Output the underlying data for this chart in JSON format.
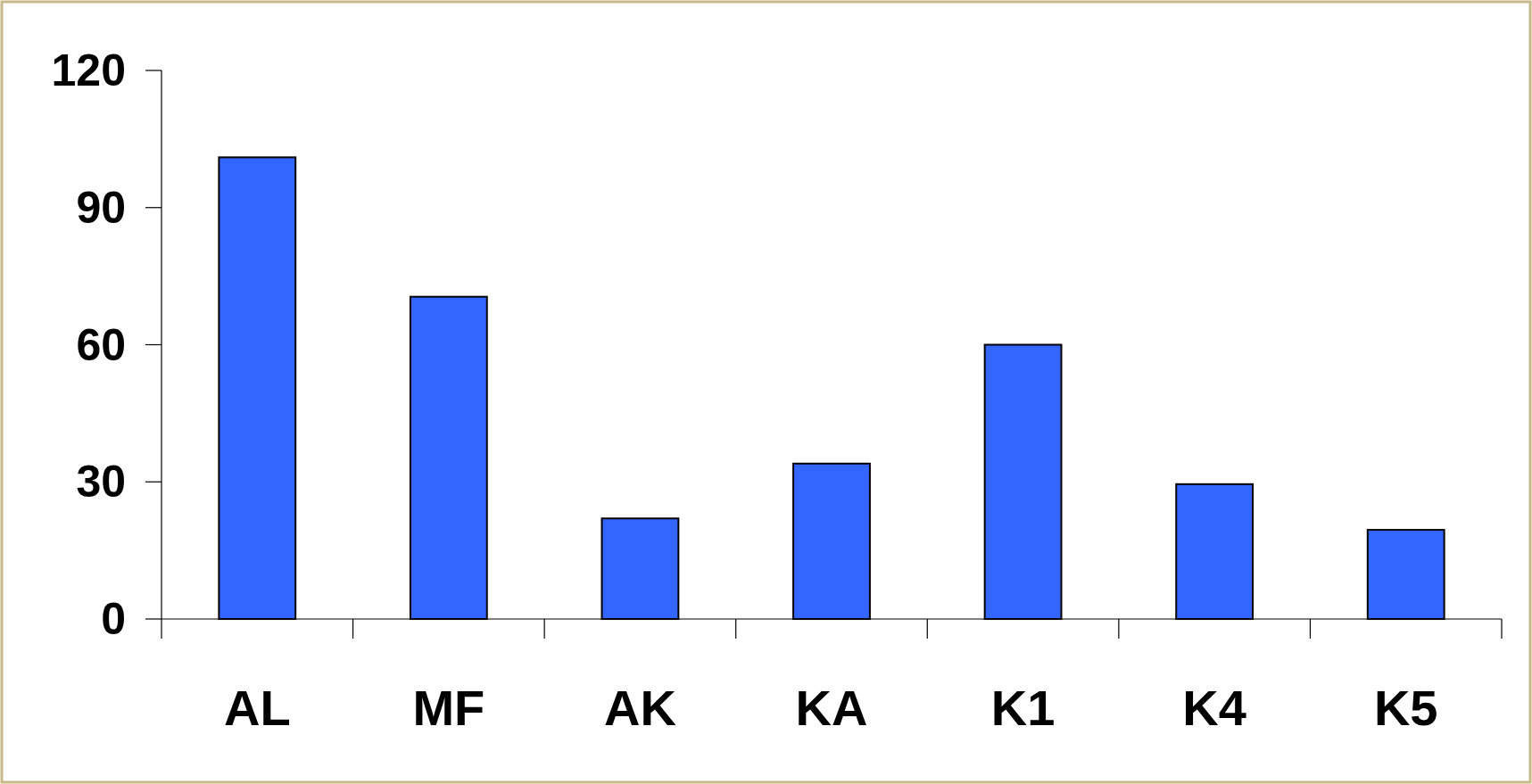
{
  "chart_data": {
    "type": "bar",
    "categories": [
      "AL",
      "MF",
      "AK",
      "KA",
      "K1",
      "K4",
      "K5"
    ],
    "values": [
      101,
      70.5,
      22,
      34,
      60,
      29.5,
      19.5
    ],
    "color": "#3366ff",
    "ylim": [
      0,
      120
    ],
    "yticks": [
      0,
      30,
      60,
      90,
      120
    ],
    "grid": false
  }
}
